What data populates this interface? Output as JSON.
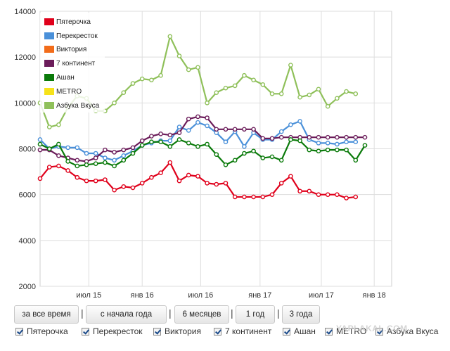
{
  "chart_data": {
    "type": "line",
    "ylim": [
      2000,
      14000
    ],
    "yticks": [
      2000,
      4000,
      6000,
      8000,
      10000,
      12000,
      14000
    ],
    "x_tick_labels": [
      "июл 15",
      "янв 16",
      "июл 16",
      "янв 17",
      "июл 17",
      "янв 18"
    ],
    "x_tick_index": [
      5.25,
      11,
      17.3,
      23.7,
      30.3,
      36
    ],
    "legend_position": "top-left",
    "grid": true,
    "series": [
      {
        "name": "Пятерочка",
        "color": "#e0001b",
        "values": [
          6700,
          7200,
          7250,
          7050,
          6750,
          6600,
          6600,
          6650,
          6200,
          6350,
          6300,
          6500,
          6750,
          6950,
          7400,
          6600,
          6850,
          6800,
          6500,
          6450,
          6500,
          5900,
          5900,
          5900,
          5900,
          6000,
          6500,
          6800,
          6150,
          6150,
          6000,
          6000,
          6000,
          5850,
          5900
        ]
      },
      {
        "name": "Перекресток",
        "color": "#4a90d9",
        "values": [
          8400,
          8000,
          8100,
          8050,
          8050,
          7800,
          7800,
          7600,
          7500,
          7700,
          7900,
          8150,
          8250,
          8350,
          8350,
          8950,
          8800,
          9150,
          9000,
          8700,
          8300,
          8750,
          8100,
          8700,
          8400,
          8400,
          8750,
          9050,
          9200,
          8400,
          8250,
          8250,
          8200,
          8300,
          8300
        ]
      },
      {
        "name": "Виктория",
        "color": "#f26c1a",
        "values": []
      },
      {
        "name": "7 континент",
        "color": "#6b1c5a",
        "values": [
          7950,
          7950,
          7700,
          7600,
          7500,
          7450,
          7600,
          7950,
          7850,
          7950,
          8050,
          8350,
          8550,
          8650,
          8600,
          8700,
          9300,
          9400,
          9350,
          8850,
          8850,
          8850,
          8850,
          8850,
          8450,
          8450,
          8500,
          8500,
          8500,
          8500,
          8500,
          8500,
          8500,
          8500,
          8500,
          8500
        ]
      },
      {
        "name": "Ашан",
        "color": "#0a7a0a",
        "values": [
          8200,
          8000,
          8200,
          7450,
          7250,
          7300,
          7350,
          7400,
          7250,
          7500,
          7800,
          8150,
          8300,
          8300,
          8100,
          8400,
          8250,
          8100,
          8200,
          7750,
          7300,
          7500,
          7800,
          7900,
          7600,
          7650,
          7500,
          8400,
          8350,
          7950,
          7900,
          7950,
          7950,
          7950,
          7500,
          8150
        ]
      },
      {
        "name": "METRO",
        "color": "#f6e21a",
        "values": []
      },
      {
        "name": "Азбука Вкуса",
        "color": "#8fc05a",
        "values": [
          10000,
          8950,
          9050,
          9800,
          10300,
          10200,
          9650,
          9650,
          10000,
          10450,
          10850,
          11050,
          11000,
          11200,
          12900,
          12050,
          11450,
          11550,
          10000,
          10450,
          10650,
          10750,
          11200,
          11000,
          10800,
          10400,
          10400,
          11650,
          10250,
          10350,
          10600,
          9850,
          10200,
          10500,
          10400
        ]
      }
    ]
  },
  "legend": {
    "items": [
      {
        "label": "Пятерочка",
        "color": "#e0001b"
      },
      {
        "label": "Перекресток",
        "color": "#4a90d9"
      },
      {
        "label": "Виктория",
        "color": "#f26c1a"
      },
      {
        "label": "7 континент",
        "color": "#6b1c5a"
      },
      {
        "label": "Ашан",
        "color": "#0a7a0a"
      },
      {
        "label": "METRO",
        "color": "#f6e21a"
      },
      {
        "label": "Азбука Вкуса",
        "color": "#8fc05a"
      }
    ]
  },
  "range_buttons": {
    "all_time": "за все время",
    "ytd": "с начала года",
    "six_months": "6 месяцев",
    "one_year": "1 год",
    "three_years": "3 года",
    "separator": "|"
  },
  "filters": {
    "items": [
      "Пятерочка",
      "Перекресток",
      "Виктория",
      "7 континент",
      "Ашан",
      "METRO",
      "Азбука Вкуса"
    ]
  },
  "watermark": "YAPLAKAL.COM"
}
